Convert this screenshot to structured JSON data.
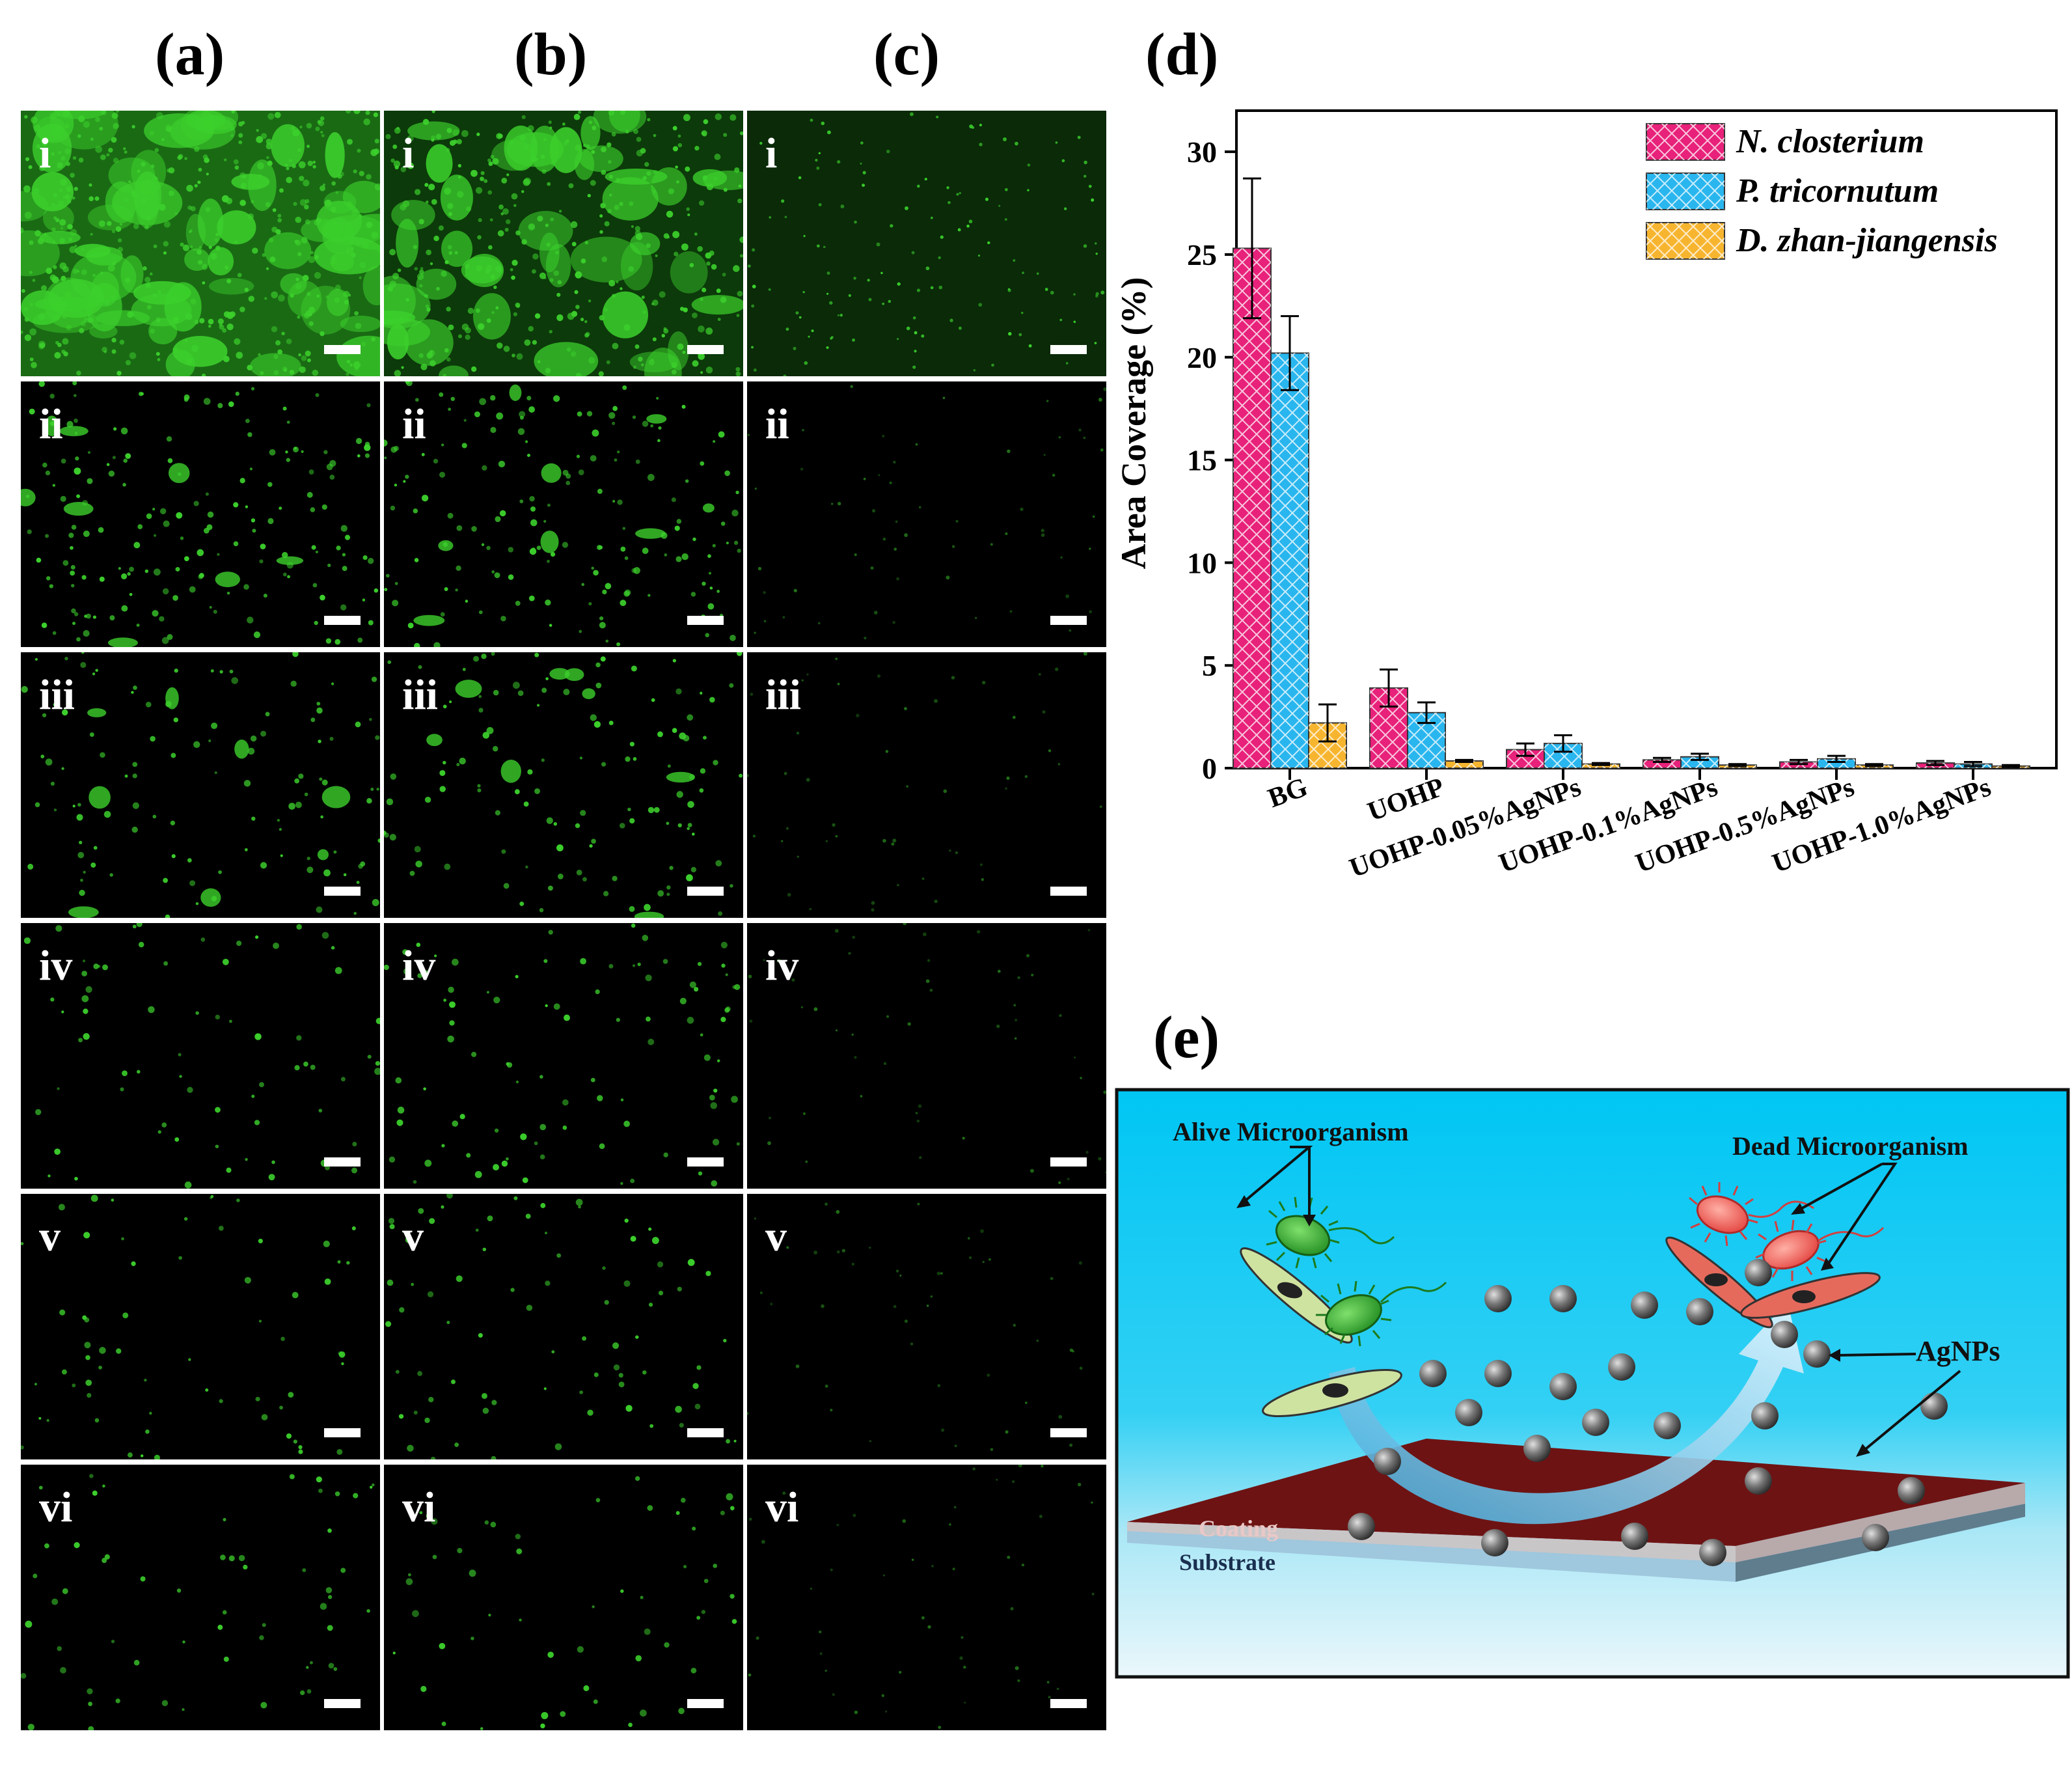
{
  "panels": {
    "a": "(a)",
    "b": "(b)",
    "c": "(c)",
    "d": "(d)",
    "e": "(e)"
  },
  "roman_labels": [
    "i",
    "ii",
    "iii",
    "iv",
    "v",
    "vi"
  ],
  "micrographs": {
    "columns": [
      "a",
      "b",
      "c"
    ],
    "rows": 6,
    "colors": {
      "fluorescence": "#3cd02c",
      "background": "#000000",
      "scale_bar": "#ffffff"
    }
  },
  "chart_data": {
    "type": "bar",
    "ylabel": "Area Coverage (%)",
    "ylim": [
      0,
      32
    ],
    "yticks": [
      0,
      5,
      10,
      15,
      20,
      25,
      30
    ],
    "categories": [
      "BG",
      "UOHP",
      "UOHP-0.05%AgNPs",
      "UOHP-0.1%AgNPs",
      "UOHP-0.5%AgNPs",
      "UOHP-1.0%AgNPs"
    ],
    "legend_placement": "top-right",
    "series": [
      {
        "name": "N. closterium",
        "color": "#e8217a",
        "values": [
          25.3,
          3.9,
          0.9,
          0.4,
          0.3,
          0.25
        ],
        "errors": [
          3.4,
          0.9,
          0.3,
          0.1,
          0.1,
          0.1
        ]
      },
      {
        "name": "P. tricornutum",
        "color": "#29b6ee",
        "values": [
          20.2,
          2.7,
          1.2,
          0.55,
          0.45,
          0.2
        ],
        "errors": [
          1.8,
          0.5,
          0.4,
          0.15,
          0.15,
          0.1
        ]
      },
      {
        "name": "D. zhan-jiangensis",
        "color": "#f7b52f",
        "values": [
          2.2,
          0.35,
          0.2,
          0.15,
          0.15,
          0.1
        ],
        "errors": [
          0.9,
          0.05,
          0.05,
          0.05,
          0.05,
          0.05
        ]
      }
    ]
  },
  "schematic": {
    "alive_label": "Alive Microorganism",
    "dead_label": "Dead Microorganism",
    "agnps_label": "AgNPs",
    "coating_label": "Coating",
    "substrate_label": "Substrate",
    "colors": {
      "water_top": "#00c8f5",
      "water_bottom": "#e6f6fb",
      "coating": "#701414",
      "alive": "#2aa02a",
      "dead": "#e8504a",
      "nanoparticle": "#6f6f6f"
    }
  }
}
